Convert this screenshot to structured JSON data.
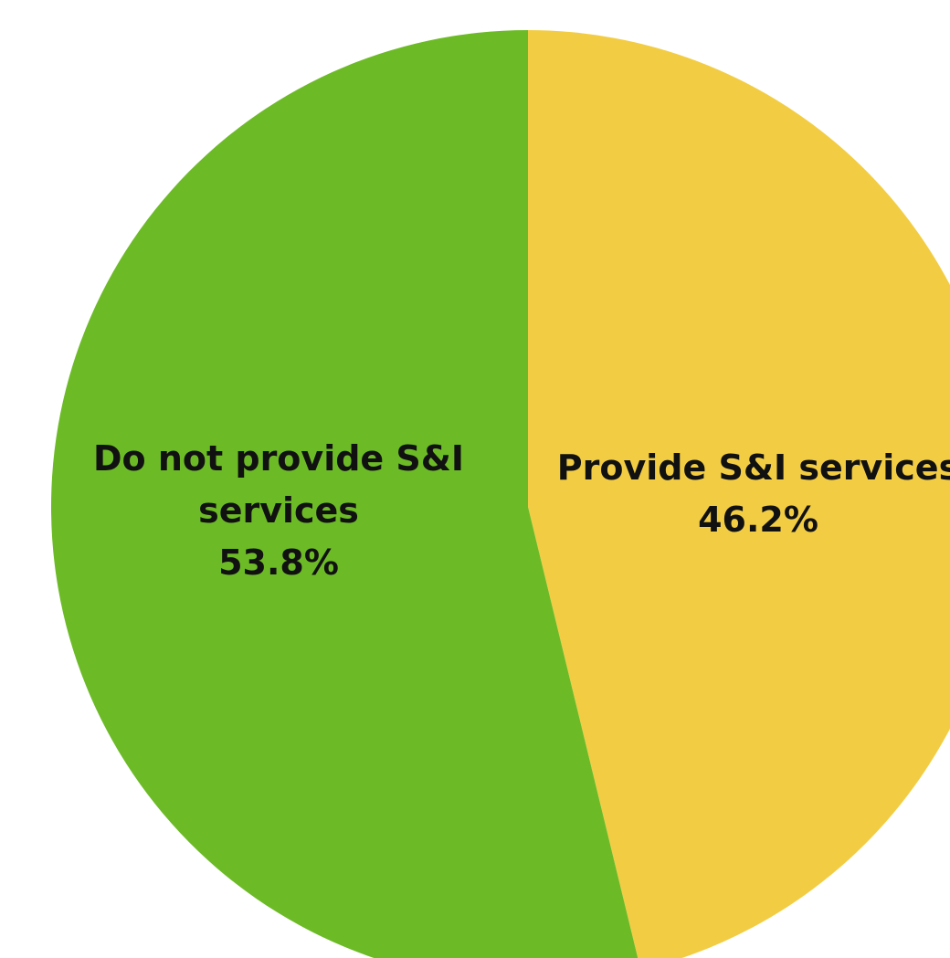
{
  "chart_data": {
    "type": "pie",
    "title": "",
    "slices": [
      {
        "label_lines": [
          "Provide S&I services"
        ],
        "value": 46.2,
        "percent_label": "46.2%",
        "color": "#F2CD43"
      },
      {
        "label_lines": [
          "Do not provide S&I",
          "services"
        ],
        "value": 53.8,
        "percent_label": "53.8%",
        "color": "#6CBB26"
      }
    ],
    "start_angle_deg": 0,
    "direction": "clockwise",
    "legend": "none"
  }
}
